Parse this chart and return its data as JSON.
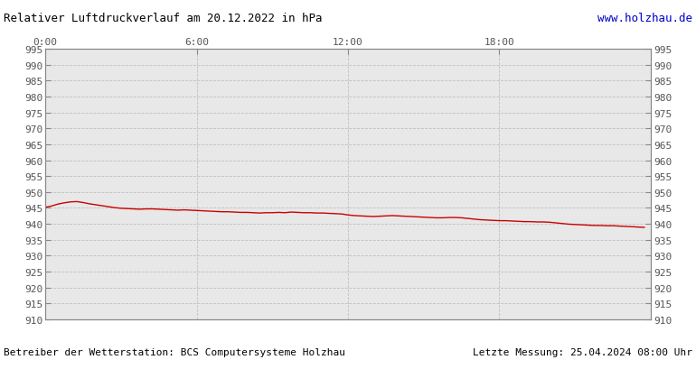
{
  "title": "Relativer Luftdruckverlauf am 20.12.2022 in hPa",
  "website": "www.holzhau.de",
  "footer_left": "Betreiber der Wetterstation: BCS Computersysteme Holzhau",
  "footer_right": "Letzte Messung: 25.04.2024 08:00 Uhr",
  "ylim": [
    910,
    995
  ],
  "ytick_step": 5,
  "xticks": [
    0,
    6,
    12,
    18
  ],
  "xtick_labels": [
    "0:00",
    "6:00",
    "12:00",
    "18:00"
  ],
  "line_color": "#cc0000",
  "bg_color": "#ffffff",
  "plot_bg_color": "#e8e8e8",
  "grid_color": "#bbbbbb",
  "title_color": "#000000",
  "website_color": "#0000cc",
  "footer_color": "#000000",
  "pressure_data_x": [
    0.0,
    0.25,
    0.5,
    0.75,
    1.0,
    1.25,
    1.5,
    1.75,
    2.0,
    2.25,
    2.5,
    2.75,
    3.0,
    3.25,
    3.5,
    3.75,
    4.0,
    4.25,
    4.5,
    4.75,
    5.0,
    5.25,
    5.5,
    5.75,
    6.0,
    6.25,
    6.5,
    6.75,
    7.0,
    7.25,
    7.5,
    7.75,
    8.0,
    8.25,
    8.5,
    8.75,
    9.0,
    9.25,
    9.5,
    9.75,
    10.0,
    10.25,
    10.5,
    10.75,
    11.0,
    11.25,
    11.5,
    11.75,
    12.0,
    12.25,
    12.5,
    12.75,
    13.0,
    13.25,
    13.5,
    13.75,
    14.0,
    14.25,
    14.5,
    14.75,
    15.0,
    15.25,
    15.5,
    15.75,
    16.0,
    16.25,
    16.5,
    16.75,
    17.0,
    17.25,
    17.5,
    17.75,
    18.0,
    18.25,
    18.5,
    18.75,
    19.0,
    19.25,
    19.5,
    19.75,
    20.0,
    20.25,
    20.5,
    20.75,
    21.0,
    21.25,
    21.5,
    21.75,
    22.0,
    22.25,
    22.5,
    22.75,
    23.0,
    23.25,
    23.5,
    23.75
  ],
  "pressure_data_y": [
    945.2,
    945.6,
    946.2,
    946.6,
    946.9,
    947.0,
    946.7,
    946.3,
    946.0,
    945.7,
    945.4,
    945.1,
    944.9,
    944.8,
    944.7,
    944.6,
    944.7,
    944.7,
    944.6,
    944.5,
    944.4,
    944.3,
    944.4,
    944.3,
    944.2,
    944.1,
    944.0,
    943.9,
    943.8,
    943.8,
    943.7,
    943.6,
    943.6,
    943.5,
    943.4,
    943.5,
    943.5,
    943.6,
    943.5,
    943.7,
    943.6,
    943.5,
    943.5,
    943.4,
    943.4,
    943.3,
    943.2,
    943.1,
    942.8,
    942.6,
    942.5,
    942.4,
    942.3,
    942.4,
    942.5,
    942.6,
    942.5,
    942.4,
    942.3,
    942.2,
    942.1,
    942.0,
    941.9,
    941.9,
    942.0,
    942.0,
    941.9,
    941.7,
    941.5,
    941.3,
    941.2,
    941.1,
    941.0,
    941.0,
    940.9,
    940.8,
    940.7,
    940.7,
    940.6,
    940.6,
    940.5,
    940.3,
    940.1,
    939.9,
    939.8,
    939.7,
    939.6,
    939.5,
    939.5,
    939.4,
    939.4,
    939.3,
    939.2,
    939.1,
    939.0,
    938.9
  ]
}
